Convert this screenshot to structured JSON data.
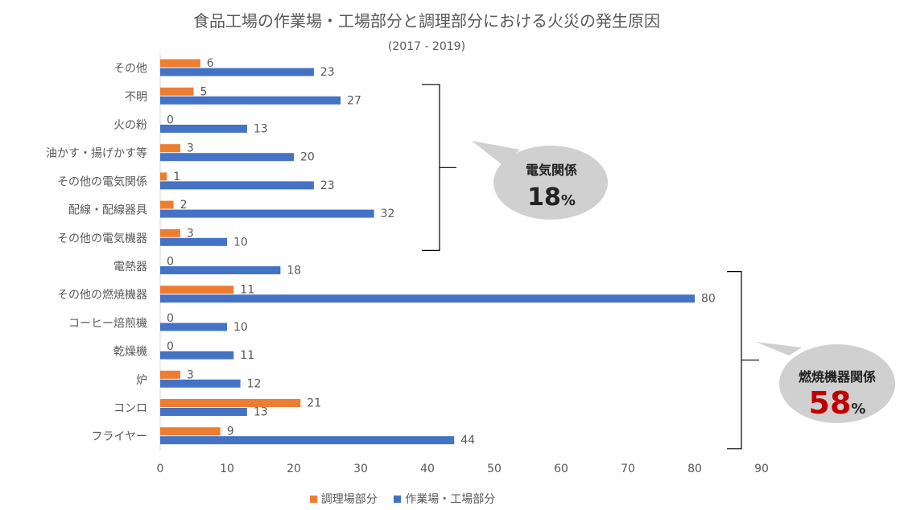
{
  "chart_data": {
    "type": "bar",
    "orientation": "horizontal",
    "title": "食品工場の作業場・工場部分と調理部分における火災の発生原因",
    "subtitle": "(2017 - 2019)",
    "categories": [
      "その他",
      "不明",
      "火の粉",
      "油かす・揚げかす等",
      "その他の電気関係",
      "配線・配線器具",
      "その他の電気機器",
      "電熱器",
      "その他の燃焼機器",
      "コーヒー焙煎機",
      "乾燥機",
      "炉",
      "コンロ",
      "フライヤー"
    ],
    "series": [
      {
        "name": "調理場部分",
        "color": "#ED7D31",
        "values": [
          6,
          5,
          0,
          3,
          1,
          2,
          3,
          0,
          11,
          0,
          0,
          3,
          21,
          9
        ]
      },
      {
        "name": "作業場・工場部分",
        "color": "#4472C4",
        "values": [
          23,
          27,
          13,
          20,
          23,
          32,
          10,
          18,
          80,
          10,
          11,
          12,
          13,
          44
        ]
      }
    ],
    "xlim": [
      0,
      90
    ],
    "xticks": [
      0,
      10,
      20,
      30,
      40,
      50,
      60,
      70,
      80,
      90
    ],
    "grid": false,
    "legend_position": "bottom",
    "annotations": [
      {
        "label": "電気関係",
        "value": "18",
        "unit": "%",
        "value_color": "#222222"
      },
      {
        "label": "燃焼機器関係",
        "value": "58",
        "unit": "%",
        "value_color": "#C00000"
      }
    ]
  }
}
